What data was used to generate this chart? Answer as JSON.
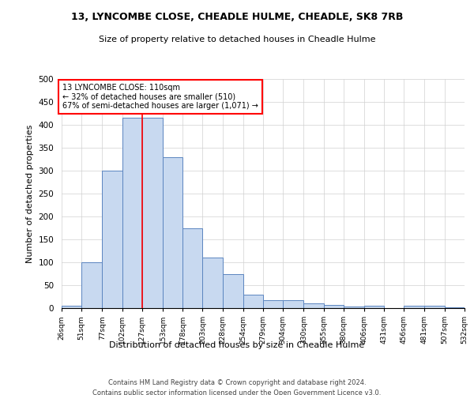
{
  "title": "13, LYNCOMBE CLOSE, CHEADLE HULME, CHEADLE, SK8 7RB",
  "subtitle": "Size of property relative to detached houses in Cheadle Hulme",
  "xlabel": "Distribution of detached houses by size in Cheadle Hulme",
  "ylabel": "Number of detached properties",
  "footer1": "Contains HM Land Registry data © Crown copyright and database right 2024.",
  "footer2": "Contains public sector information licensed under the Open Government Licence v3.0.",
  "bar_edge_color": "#5b85c0",
  "bar_face_color": "#c8d9f0",
  "grid_color": "#d0d0d0",
  "annotation_text": "13 LYNCOMBE CLOSE: 110sqm\n← 32% of detached houses are smaller (510)\n67% of semi-detached houses are larger (1,071) →",
  "property_size": 110,
  "red_line_x": 127,
  "bin_edges": [
    26,
    51,
    77,
    102,
    127,
    153,
    178,
    203,
    228,
    254,
    279,
    304,
    330,
    355,
    380,
    406,
    431,
    456,
    481,
    507,
    532
  ],
  "bin_counts": [
    5,
    100,
    300,
    415,
    415,
    330,
    175,
    110,
    75,
    30,
    18,
    18,
    10,
    7,
    4,
    5,
    0,
    5,
    5,
    2
  ],
  "ylim": [
    0,
    500
  ],
  "yticks": [
    0,
    50,
    100,
    150,
    200,
    250,
    300,
    350,
    400,
    450,
    500
  ]
}
